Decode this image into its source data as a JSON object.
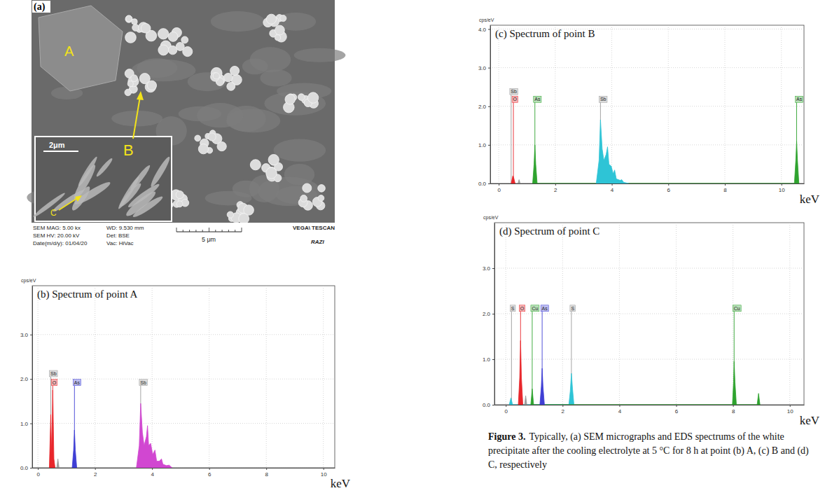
{
  "micrograph": {
    "panel": "(a)",
    "labels": [
      "A",
      "B",
      "C"
    ],
    "inset_scale": "2μm",
    "scale_bar": "5 μm",
    "info": [
      "SEM MAG: 5.00 kx",
      "WD: 9.530 mm",
      "SEM HV: 20.00 kV",
      "Det: BSE",
      "Date(m/d/y): 01/04/20",
      "Vac: HiVac"
    ],
    "brand": "VEGA\\ TESCAN",
    "logo": "RAZI"
  },
  "chart_data": [
    {
      "type": "area",
      "title": "(b) Spectrum of point A",
      "y_label": "cps/eV",
      "x_label": "keV",
      "xlim": [
        -0.2,
        10.4
      ],
      "xticks": [
        0,
        2,
        4,
        6,
        8,
        10
      ],
      "ylim": [
        0,
        4.1
      ],
      "yticks": [
        {
          "value": 0,
          "label": "0.0"
        },
        {
          "value": 1,
          "label": "1.0"
        },
        {
          "value": 2,
          "label": "2.0"
        },
        {
          "value": 3,
          "label": "3.0"
        }
      ],
      "grid": true,
      "series": [
        {
          "color": "#e8262b",
          "x": [
            0.4,
            0.45,
            0.48,
            0.52,
            0.56,
            0.6
          ],
          "values": [
            0,
            1.2,
            0.3,
            1.75,
            0.2,
            0
          ]
        },
        {
          "color": "#9a9a9a",
          "x": [
            0.66,
            0.7,
            0.74
          ],
          "values": [
            0,
            0.2,
            0
          ]
        },
        {
          "color": "#3f3fd4",
          "x": [
            1.2,
            1.25,
            1.28,
            1.31,
            1.36
          ],
          "values": [
            0,
            0.4,
            0.85,
            0.4,
            0
          ]
        },
        {
          "color": "#d147d1",
          "x": [
            3.45,
            3.55,
            3.6,
            3.66,
            3.72,
            3.8,
            3.84,
            3.88,
            3.95,
            4.02,
            4.1,
            4.16,
            4.25,
            4.33,
            4.38,
            4.5,
            4.6,
            4.7
          ],
          "values": [
            0,
            0.5,
            1.45,
            0.8,
            0.5,
            0.7,
            0.95,
            0.5,
            0.55,
            0.3,
            0.4,
            0.15,
            0.15,
            0.2,
            0.08,
            0.05,
            0.06,
            0
          ]
        }
      ],
      "annotations": [
        {
          "text": "Sb",
          "x": 0.45,
          "y": 2.05,
          "color": "#9a9a9a"
        },
        {
          "text": "O",
          "x": 0.52,
          "y": 1.85,
          "color": "#e8262b"
        },
        {
          "text": "As",
          "x": 1.28,
          "y": 1.85,
          "color": "#3f3fd4"
        },
        {
          "text": "Sb",
          "x": 3.6,
          "y": 1.85,
          "color": "#9a9a9a"
        }
      ]
    },
    {
      "type": "area",
      "title": "(c) Spectrum of point B",
      "y_label": "cps/eV",
      "x_label": "keV",
      "xlim": [
        -0.3,
        10.8
      ],
      "xticks": [
        0,
        2,
        4,
        6,
        8,
        10
      ],
      "ylim": [
        0,
        4.1
      ],
      "yticks": [
        {
          "value": 0,
          "label": "0.0"
        },
        {
          "value": 1,
          "label": "1.0"
        },
        {
          "value": 2,
          "label": "2.0"
        },
        {
          "value": 3,
          "label": "3.0"
        },
        {
          "value": 4,
          "label": "4.0"
        }
      ],
      "grid": true,
      "series": [
        {
          "color": "#e8262b",
          "x": [
            0.44,
            0.5,
            0.53,
            0.58
          ],
          "values": [
            0,
            0.2,
            0.15,
            0
          ]
        },
        {
          "color": "#9a9a9a",
          "x": [
            0.68,
            0.72,
            0.76
          ],
          "values": [
            0,
            0.1,
            0
          ]
        },
        {
          "color": "#2ea32e",
          "x": [
            1.2,
            1.25,
            1.28,
            1.31,
            1.36,
            10.46,
            10.51,
            10.54,
            10.57,
            10.62
          ],
          "values": [
            0,
            0.5,
            1.0,
            0.5,
            0,
            0,
            0.6,
            1.1,
            0.6,
            0
          ]
        },
        {
          "color": "#2ec4d6",
          "x": [
            3.45,
            3.55,
            3.6,
            3.66,
            3.72,
            3.8,
            3.85,
            3.9,
            3.98,
            4.05,
            4.1,
            4.16,
            4.3,
            4.35,
            4.42,
            4.6
          ],
          "values": [
            0,
            0.6,
            1.65,
            0.9,
            0.6,
            0.75,
            0.95,
            0.5,
            0.45,
            0.25,
            0.35,
            0.12,
            0.08,
            0.1,
            0.03,
            0
          ]
        }
      ],
      "annotations": [
        {
          "text": "Sb",
          "x": 0.44,
          "y": 2.3,
          "color": "#9a9a9a"
        },
        {
          "text": "O",
          "x": 0.52,
          "y": 2.1,
          "color": "#e8262b"
        },
        {
          "text": "As",
          "x": 1.28,
          "y": 2.1,
          "color": "#2ea32e"
        },
        {
          "text": "Sb",
          "x": 3.6,
          "y": 2.1,
          "color": "#9a9a9a"
        },
        {
          "text": "As",
          "x": 10.54,
          "y": 2.1,
          "color": "#2ea32e"
        }
      ]
    },
    {
      "type": "area",
      "title": "(d) Spectrum of point C",
      "y_label": "cps/eV",
      "x_label": "keV",
      "xlim": [
        -0.4,
        10.5
      ],
      "xticks": [
        0,
        2,
        4,
        6,
        8,
        10
      ],
      "ylim": [
        0,
        4.0
      ],
      "yticks": [
        {
          "value": 0,
          "label": "0.0"
        },
        {
          "value": 1,
          "label": "1.0"
        },
        {
          "value": 2,
          "label": "2.0"
        },
        {
          "value": 3,
          "label": "3.0"
        }
      ],
      "grid": true,
      "series": [
        {
          "color": "#2ec4d6",
          "x": [
            0.12,
            0.18,
            0.24,
            2.22,
            2.27,
            2.31,
            2.35,
            2.4
          ],
          "values": [
            0,
            0.15,
            0,
            0,
            0.3,
            0.69,
            0.35,
            0
          ]
        },
        {
          "color": "#e8262b",
          "x": [
            0.44,
            0.49,
            0.52,
            0.55,
            0.6
          ],
          "values": [
            0,
            0.6,
            1.41,
            0.6,
            0
          ]
        },
        {
          "color": "#9a9a9a",
          "x": [
            0.66,
            0.7,
            0.74
          ],
          "values": [
            0,
            0.2,
            0
          ]
        },
        {
          "color": "#2ea32e",
          "x": [
            0.88,
            0.93,
            0.98,
            7.98,
            8.02,
            8.04,
            8.07,
            8.12,
            8.85,
            8.9,
            8.95
          ],
          "values": [
            0,
            0.35,
            0,
            0,
            0.5,
            0.95,
            0.5,
            0,
            0,
            0.25,
            0
          ]
        },
        {
          "color": "#3f3fd4",
          "x": [
            1.2,
            1.25,
            1.28,
            1.31,
            1.36
          ],
          "values": [
            0,
            0.4,
            0.8,
            0.4,
            0
          ]
        }
      ],
      "annotations": [
        {
          "text": "S",
          "x": 0.2,
          "y": 2.05,
          "color": "#9a9a9a"
        },
        {
          "text": "O",
          "x": 0.52,
          "y": 2.05,
          "color": "#e8262b"
        },
        {
          "text": "Cu",
          "x": 0.93,
          "y": 2.05,
          "color": "#2ea32e"
        },
        {
          "text": "As",
          "x": 1.28,
          "y": 2.05,
          "color": "#3f3fd4"
        },
        {
          "text": "S",
          "x": 2.31,
          "y": 2.05,
          "color": "#9a9a9a"
        },
        {
          "text": "Cu",
          "x": 8.04,
          "y": 2.05,
          "color": "#2ea32e"
        }
      ]
    }
  ],
  "caption": {
    "label": "Figure 3.",
    "text": "Typically, (a) SEM micrographs and EDS spectrums of the white precipitate after the cooling electrolyte at 5 °C for 8 h at point (b) A, (c) B and (d) C, respectively"
  }
}
